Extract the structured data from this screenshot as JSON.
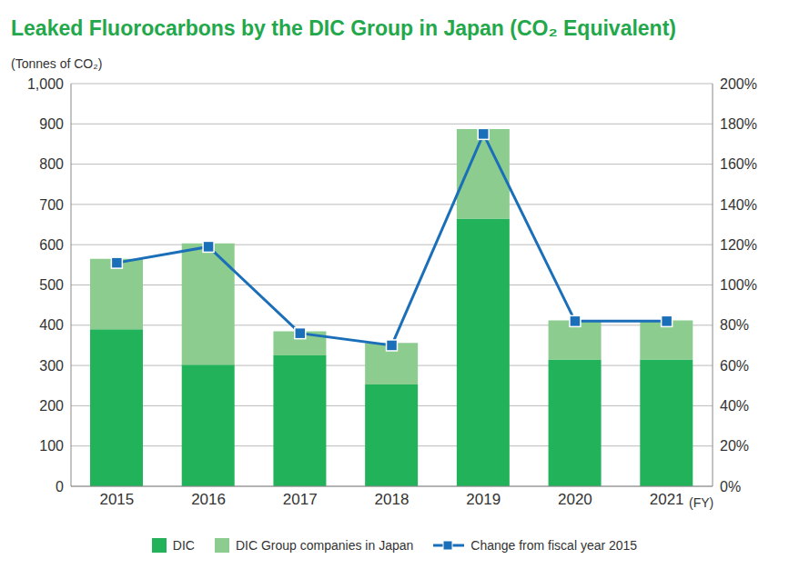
{
  "chart_data": {
    "type": "bar",
    "title": "Leaked Fluorocarbons by the DIC Group in Japan (CO₂ Equivalent)",
    "ylabel": "(Tonnes of CO₂)",
    "xlabel": "(FY)",
    "categories": [
      "2015",
      "2016",
      "2017",
      "2018",
      "2019",
      "2020",
      "2021"
    ],
    "series": [
      {
        "name": "DIC",
        "type": "bar",
        "color": "#22b35a",
        "values": [
          390,
          302,
          325,
          253,
          665,
          315,
          315
        ]
      },
      {
        "name": "DIC Group companies in Japan",
        "type": "bar",
        "color": "#8ccc8f",
        "values": [
          175,
          301,
          60,
          103,
          222,
          97,
          97
        ]
      },
      {
        "name": "Change from fiscal year 2015",
        "type": "line",
        "axis": "y2",
        "color": "#1b6fb8",
        "marker": "square",
        "line_style": "solid",
        "values": [
          111,
          119,
          76,
          70,
          175,
          82,
          82
        ]
      }
    ],
    "stacked": true,
    "ylim": [
      0,
      1000
    ],
    "yticks": [
      0,
      100,
      200,
      300,
      400,
      500,
      600,
      700,
      800,
      900,
      {
        "value": 1000,
        "label": "1,000"
      }
    ],
    "y2lim": [
      0,
      200
    ],
    "y2ticks": [
      {
        "value": 0,
        "label": "0%"
      },
      {
        "value": 20,
        "label": "20%"
      },
      {
        "value": 40,
        "label": "40%"
      },
      {
        "value": 60,
        "label": "60%"
      },
      {
        "value": 80,
        "label": "80%"
      },
      {
        "value": 100,
        "label": "100%"
      },
      {
        "value": 120,
        "label": "120%"
      },
      {
        "value": 140,
        "label": "140%"
      },
      {
        "value": 160,
        "label": "160%"
      },
      {
        "value": 180,
        "label": "180%"
      },
      {
        "value": 200,
        "label": "200%"
      }
    ],
    "grid": true,
    "legend": "bottom"
  }
}
